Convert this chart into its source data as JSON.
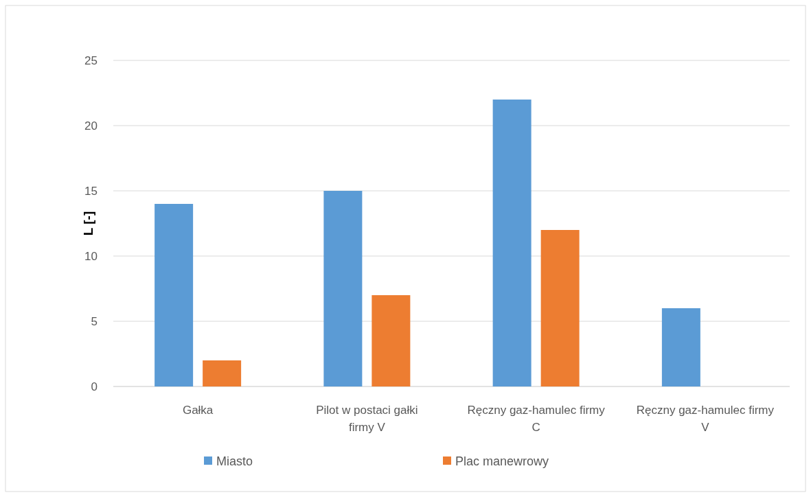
{
  "chart_data": {
    "type": "bar",
    "ylabel": "L [-]",
    "categories": [
      "Gałka",
      "Pilot w postaci gałki firmy V",
      "Ręczny gaz-hamulec firmy C",
      "Ręczny gaz-hamulec firmy V"
    ],
    "series": [
      {
        "name": "Miasto",
        "color": "#5b9bd5",
        "values": [
          14,
          15,
          22,
          6
        ]
      },
      {
        "name": "Plac manewrowy",
        "color": "#ed7d31",
        "values": [
          2,
          7,
          12,
          0
        ]
      }
    ],
    "ylim": [
      0,
      25
    ],
    "yticks": [
      0,
      5,
      10,
      15,
      20,
      25
    ],
    "grid": "y",
    "legend": "bottom"
  }
}
